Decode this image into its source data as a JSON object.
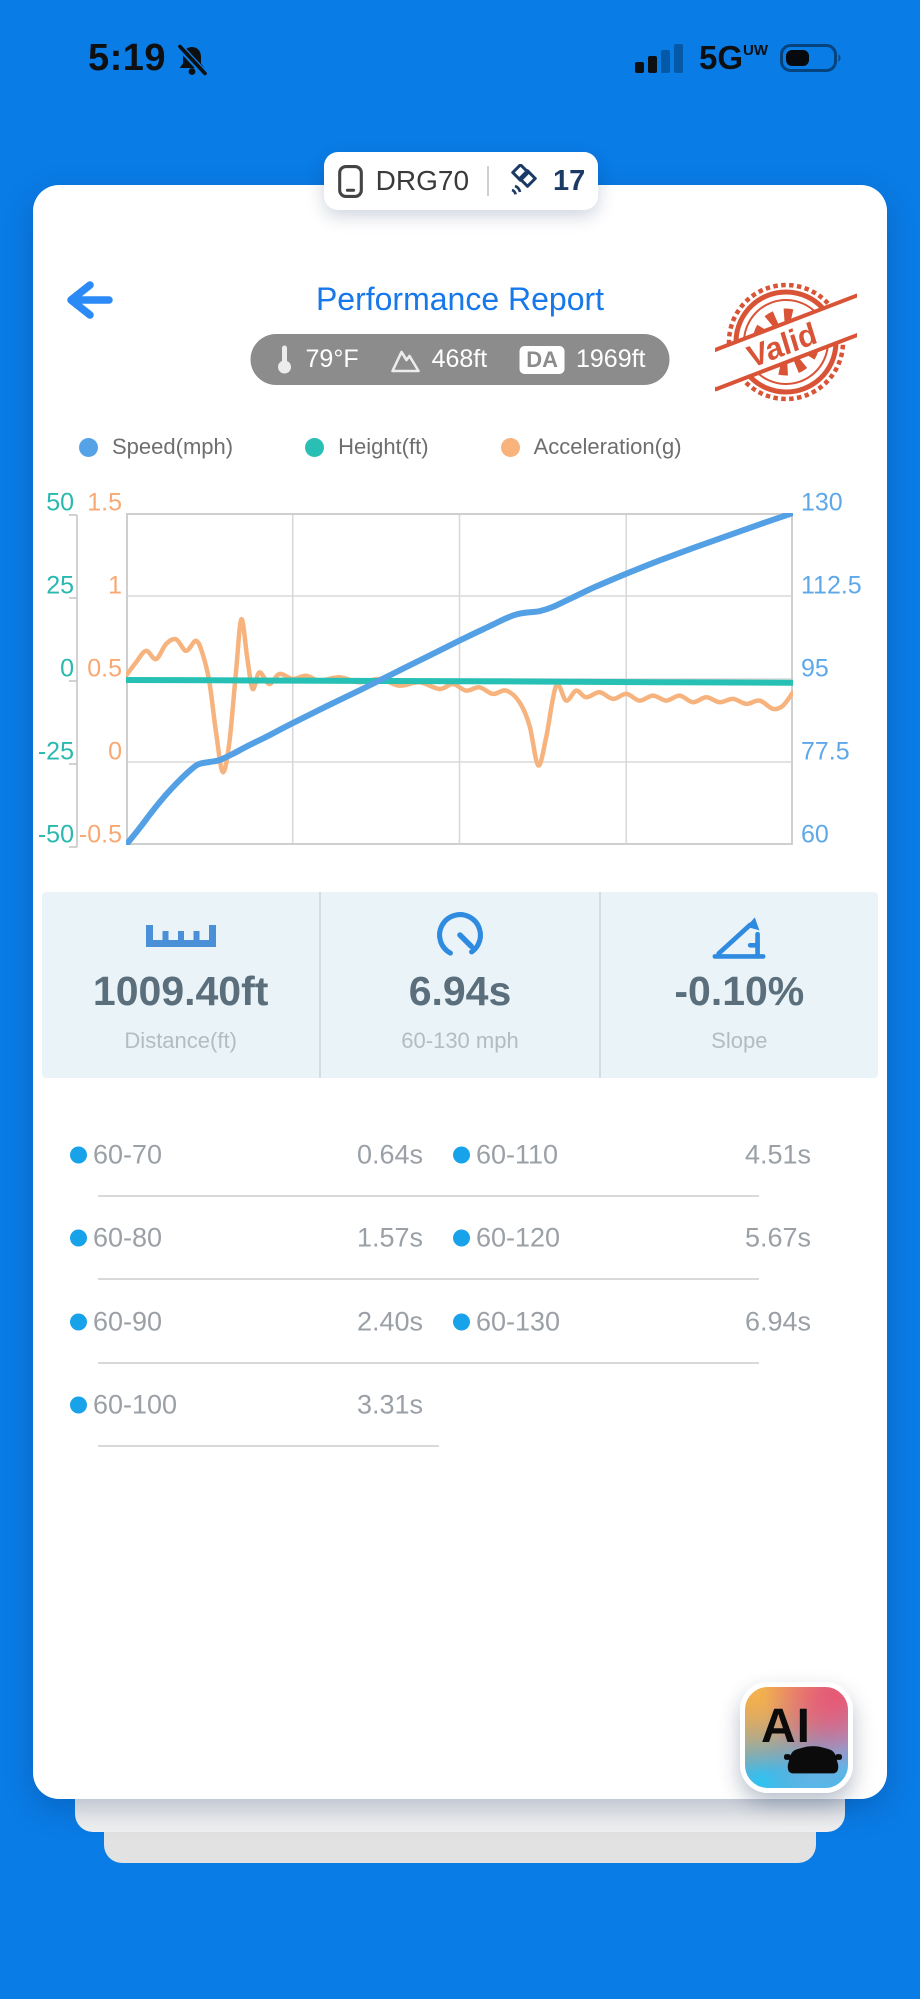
{
  "status_bar": {
    "time": "5:19",
    "network": "5G",
    "network_band": "UW"
  },
  "device_pill": {
    "name": "DRG70",
    "satellite_count": "17"
  },
  "header": {
    "title": "Performance Report",
    "temperature": "79°F",
    "altitude": "468ft",
    "da_label": "DA",
    "density_altitude": "1969ft",
    "stamp_text": "Valid"
  },
  "legend": [
    {
      "label": "Speed(mph)",
      "color": "#55a3e6"
    },
    {
      "label": "Height(ft)",
      "color": "#2abfb5"
    },
    {
      "label": "Acceleration(g)",
      "color": "#f8b27c"
    }
  ],
  "chart_data": {
    "type": "line",
    "x_unit": "percent_of_run",
    "x_range": [
      0,
      100
    ],
    "grid": true,
    "legend_position": "top",
    "axes": {
      "left_height": {
        "label": "Height(ft)",
        "min": -50,
        "max": 50,
        "ticks": [
          "50",
          "25",
          "0",
          "-25",
          "-50"
        ],
        "color": "#29b9ae"
      },
      "left_accel": {
        "label": "Acceleration(g)",
        "min": -0.5,
        "max": 1.5,
        "ticks": [
          "1.5",
          "1",
          "0.5",
          "0",
          "-0.5"
        ],
        "color": "#f8a873"
      },
      "right_speed": {
        "label": "Speed(mph)",
        "min": 60,
        "max": 130,
        "ticks": [
          "130",
          "112.5",
          "95",
          "77.5",
          "60"
        ],
        "color": "#5ea8ea"
      }
    },
    "series": [
      {
        "name": "Acceleration(g)",
        "axis": "left_accel",
        "color": "#f7b37e",
        "width": 4.5,
        "points": [
          [
            0,
            0.52
          ],
          [
            1.5,
            0.6
          ],
          [
            3,
            0.67
          ],
          [
            4.5,
            0.62
          ],
          [
            6,
            0.71
          ],
          [
            7.5,
            0.74
          ],
          [
            9,
            0.67
          ],
          [
            10.5,
            0.73
          ],
          [
            11.5,
            0.65
          ],
          [
            12.5,
            0.48
          ],
          [
            13.5,
            0.18
          ],
          [
            14.5,
            -0.06
          ],
          [
            15.5,
            0.12
          ],
          [
            16.5,
            0.55
          ],
          [
            17.3,
            0.86
          ],
          [
            18.2,
            0.62
          ],
          [
            19,
            0.44
          ],
          [
            20,
            0.54
          ],
          [
            21.5,
            0.47
          ],
          [
            23,
            0.53
          ],
          [
            25,
            0.5
          ],
          [
            27,
            0.52
          ],
          [
            29,
            0.49
          ],
          [
            32,
            0.51
          ],
          [
            35,
            0.48
          ],
          [
            38,
            0.5
          ],
          [
            41,
            0.46
          ],
          [
            44,
            0.48
          ],
          [
            47,
            0.44
          ],
          [
            49,
            0.47
          ],
          [
            51,
            0.43
          ],
          [
            53,
            0.45
          ],
          [
            55,
            0.41
          ],
          [
            57,
            0.43
          ],
          [
            59,
            0.36
          ],
          [
            60.5,
            0.22
          ],
          [
            61.8,
            -0.02
          ],
          [
            63,
            0.15
          ],
          [
            64.5,
            0.46
          ],
          [
            66,
            0.37
          ],
          [
            67.5,
            0.43
          ],
          [
            69,
            0.39
          ],
          [
            71,
            0.42
          ],
          [
            73,
            0.38
          ],
          [
            75,
            0.41
          ],
          [
            77,
            0.37
          ],
          [
            79,
            0.4
          ],
          [
            81,
            0.37
          ],
          [
            83,
            0.4
          ],
          [
            85,
            0.36
          ],
          [
            87,
            0.39
          ],
          [
            89,
            0.36
          ],
          [
            91,
            0.38
          ],
          [
            93,
            0.35
          ],
          [
            95,
            0.37
          ],
          [
            97,
            0.32
          ],
          [
            98.5,
            0.34
          ],
          [
            100,
            0.42
          ]
        ]
      },
      {
        "name": "Height(ft)",
        "axis": "left_height",
        "color": "#26c0b4",
        "width": 6,
        "points": [
          [
            0,
            -0.3
          ],
          [
            20,
            -0.45
          ],
          [
            40,
            -0.6
          ],
          [
            60,
            -0.75
          ],
          [
            80,
            -0.95
          ],
          [
            100,
            -1.1
          ]
        ]
      },
      {
        "name": "Speed(mph)",
        "axis": "right_speed",
        "color": "#54a0e4",
        "width": 6,
        "points": [
          [
            0,
            60
          ],
          [
            2,
            63.5
          ],
          [
            4,
            67.2
          ],
          [
            6,
            70.6
          ],
          [
            8,
            73.6
          ],
          [
            10,
            76.2
          ],
          [
            11,
            77.1
          ],
          [
            12.5,
            77.5
          ],
          [
            14,
            77.9
          ],
          [
            16,
            79.2
          ],
          [
            18,
            80.7
          ],
          [
            21,
            82.8
          ],
          [
            25,
            85.7
          ],
          [
            30,
            89.2
          ],
          [
            35,
            92.6
          ],
          [
            40,
            96.1
          ],
          [
            45,
            99.6
          ],
          [
            50,
            103.1
          ],
          [
            54,
            105.8
          ],
          [
            57,
            107.8
          ],
          [
            58.5,
            108.6
          ],
          [
            60,
            109
          ],
          [
            62,
            109.3
          ],
          [
            64,
            110.2
          ],
          [
            67,
            112.2
          ],
          [
            70,
            114.2
          ],
          [
            75,
            117.2
          ],
          [
            80,
            120
          ],
          [
            85,
            122.6
          ],
          [
            90,
            125.1
          ],
          [
            95,
            127.6
          ],
          [
            100,
            130
          ]
        ]
      }
    ]
  },
  "stats": [
    {
      "icon": "ruler-icon",
      "value": "1009.40ft",
      "label": "Distance(ft)"
    },
    {
      "icon": "speedometer-icon",
      "value": "6.94s",
      "label": "60-130 mph"
    },
    {
      "icon": "slope-icon",
      "value": "-0.10%",
      "label": "Slope"
    }
  ],
  "splits": [
    {
      "left": {
        "label": "60-70",
        "value": "0.64s"
      },
      "right": {
        "label": "60-110",
        "value": "4.51s"
      },
      "half_rule": false
    },
    {
      "left": {
        "label": "60-80",
        "value": "1.57s"
      },
      "right": {
        "label": "60-120",
        "value": "5.67s"
      },
      "half_rule": false
    },
    {
      "left": {
        "label": "60-90",
        "value": "2.40s"
      },
      "right": {
        "label": "60-130",
        "value": "6.94s"
      },
      "half_rule": false
    },
    {
      "left": {
        "label": "60-100",
        "value": "3.31s"
      },
      "right": null,
      "half_rule": true
    }
  ],
  "ai_button": {
    "label": "AI"
  },
  "colors": {
    "background": "#0a7ce6",
    "card": "#ffffff",
    "title": "#1778ea",
    "stamp": "#d84a2c",
    "stats_bg": "#e9f3f8",
    "stat_value": "#5a6e7c",
    "stat_label": "#b3bcc2",
    "split_text": "#9aa0a6",
    "split_dot": "#17a2ea",
    "grid": "#d9d9d9",
    "accent_blue": "#2b8af5"
  }
}
